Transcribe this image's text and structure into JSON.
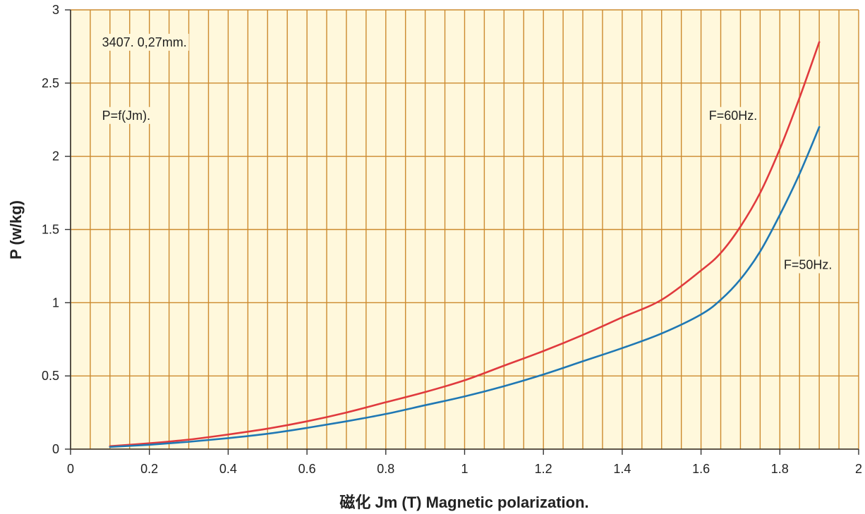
{
  "chart_data": {
    "type": "line",
    "title": "",
    "xlabel": "磁化 Jm (T)  Magnetic polarization.",
    "ylabel": "P (w/kg)",
    "xlim": [
      0,
      2
    ],
    "ylim": [
      0,
      3
    ],
    "x_ticks": [
      "0",
      "0.2",
      "0.4",
      "0.6",
      "0.8",
      "1",
      "1.2",
      "1.4",
      "1.6",
      "1.8",
      "2"
    ],
    "y_ticks": [
      "0",
      "0.5",
      "1",
      "1.5",
      "2",
      "2.5",
      "3"
    ],
    "x_tick_values": [
      0,
      0.2,
      0.4,
      0.6,
      0.8,
      1,
      1.2,
      1.4,
      1.6,
      1.8,
      2
    ],
    "y_tick_values": [
      0,
      0.5,
      1,
      1.5,
      2,
      2.5,
      3
    ],
    "minor_x_step": 0.05,
    "grid": true,
    "annotations": [
      {
        "text": "3407. 0,27mm.",
        "x": 0.08,
        "y": 2.75
      },
      {
        "text": "P=f(Jm).",
        "x": 0.08,
        "y": 2.25
      },
      {
        "text": "F=60Hz.",
        "x": 1.62,
        "y": 2.25
      },
      {
        "text": "F=50Hz.",
        "x": 1.81,
        "y": 1.23
      }
    ],
    "series": [
      {
        "name": "F=60Hz.",
        "color": "#e03a3e",
        "x": [
          0.1,
          0.2,
          0.3,
          0.4,
          0.5,
          0.6,
          0.7,
          0.8,
          0.9,
          1.0,
          1.1,
          1.2,
          1.3,
          1.4,
          1.5,
          1.6,
          1.65,
          1.7,
          1.75,
          1.8,
          1.85,
          1.9
        ],
        "y": [
          0.02,
          0.04,
          0.065,
          0.1,
          0.14,
          0.19,
          0.25,
          0.32,
          0.39,
          0.47,
          0.57,
          0.67,
          0.78,
          0.9,
          1.02,
          1.22,
          1.34,
          1.52,
          1.75,
          2.05,
          2.4,
          2.78
        ]
      },
      {
        "name": "F=50Hz.",
        "color": "#1f78b4",
        "x": [
          0.1,
          0.2,
          0.3,
          0.4,
          0.5,
          0.6,
          0.7,
          0.8,
          0.9,
          1.0,
          1.1,
          1.2,
          1.3,
          1.4,
          1.5,
          1.6,
          1.65,
          1.7,
          1.75,
          1.8,
          1.85,
          1.9
        ],
        "y": [
          0.015,
          0.03,
          0.05,
          0.075,
          0.105,
          0.145,
          0.19,
          0.24,
          0.3,
          0.36,
          0.43,
          0.51,
          0.6,
          0.69,
          0.79,
          0.92,
          1.02,
          1.16,
          1.35,
          1.6,
          1.88,
          2.2
        ]
      }
    ]
  }
}
